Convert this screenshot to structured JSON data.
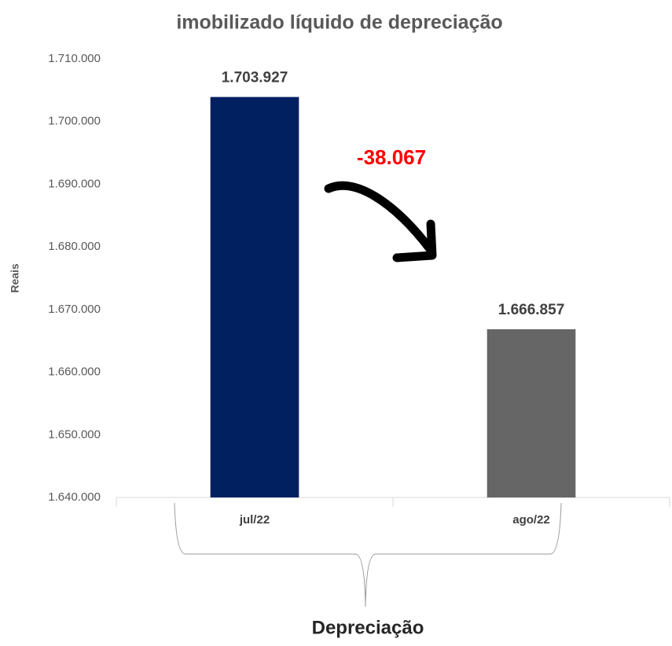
{
  "chart_data": {
    "type": "bar",
    "title": "imobilizado líquido de depreciação",
    "y_label": "Reais",
    "x_label": "Depreciação",
    "annotation": "-38.067",
    "categories": [
      "jul/22",
      "ago/22"
    ],
    "values": [
      1703927,
      1666857
    ],
    "value_labels": [
      "1.703.927",
      "1.666.857"
    ],
    "colors": [
      "#002060",
      "#666666"
    ],
    "ylim": [
      1640000,
      1710000
    ],
    "yticks": [
      {
        "value": 1640000,
        "label": "1.640.000"
      },
      {
        "value": 1650000,
        "label": "1.650.000"
      },
      {
        "value": 1660000,
        "label": "1.660.000"
      },
      {
        "value": 1670000,
        "label": "1.670.000"
      },
      {
        "value": 1680000,
        "label": "1.680.000"
      },
      {
        "value": 1690000,
        "label": "1.690.000"
      },
      {
        "value": 1700000,
        "label": "1.700.000"
      },
      {
        "value": 1710000,
        "label": "1.710.000"
      }
    ],
    "grid": false
  }
}
